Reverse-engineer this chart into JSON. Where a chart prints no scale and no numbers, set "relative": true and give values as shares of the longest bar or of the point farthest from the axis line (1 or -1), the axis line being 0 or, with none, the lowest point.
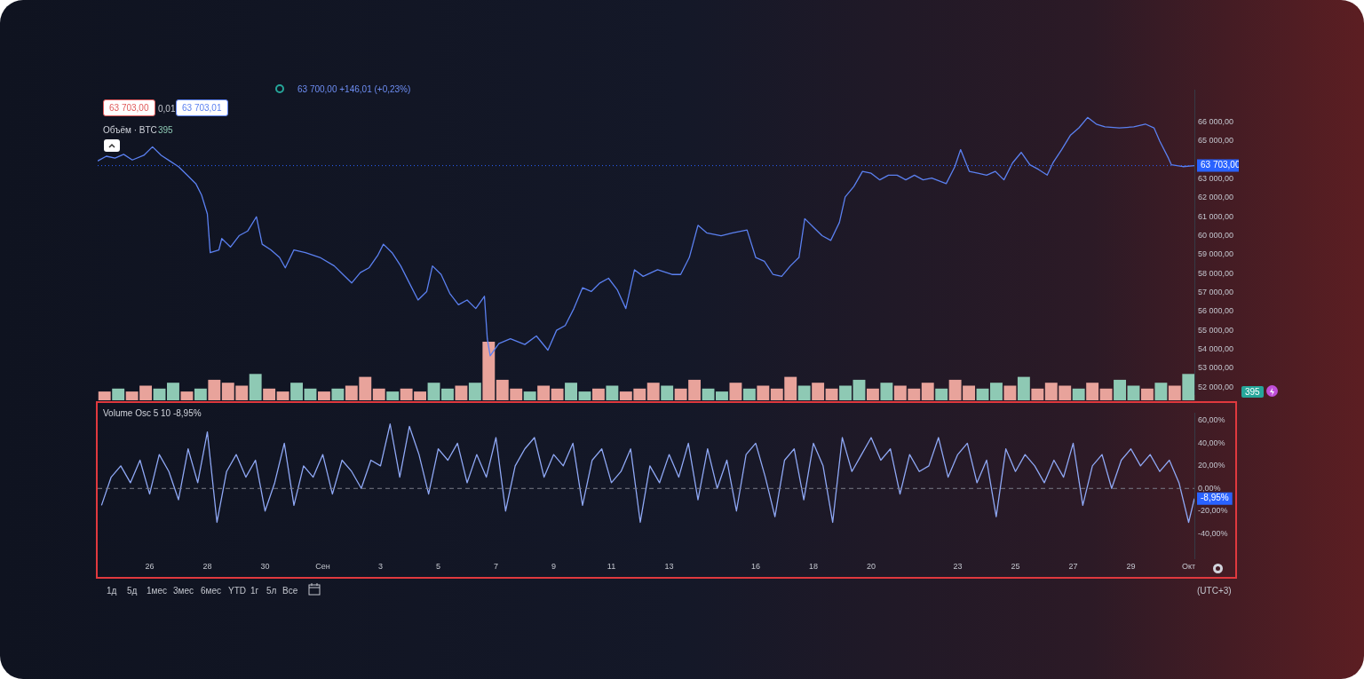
{
  "chart_data": [
    {
      "type": "line",
      "x": [
        "--08-24T04:48",
        "--08-24T12:00",
        "--08-24T19:12",
        "--08-25T02:24",
        "--08-25T09:36",
        "--08-25T19:12",
        "--08-26T02:24",
        "--08-26T09:36",
        "--08-26T16:48",
        "--08-27T00:00",
        "--08-27T07:12",
        "--08-27T14:24",
        "--08-27T19:12",
        "--08-28T00:00",
        "--08-28T02:24",
        "--08-28T09:36",
        "--08-28T12:00",
        "--08-28T19:12",
        "--08-29T02:24",
        "--08-29T09:36",
        "--08-29T16:48",
        "--08-29T21:36",
        "--08-30T04:48",
        "--08-30T12:00",
        "--08-30T16:48",
        "--08-31T00:00",
        "--08-31T09:36",
        "--08-31T21:36",
        "--09-01T09:36",
        "--09-01T16:48",
        "--09-02T00:00",
        "--09-02T07:12",
        "--09-02T14:24",
        "--09-02T21:36",
        "--09-03T02:24",
        "--09-03T09:36",
        "--09-03T16:48",
        "--09-04T00:00",
        "--09-04T07:12",
        "--09-04T14:24",
        "--09-04T19:12",
        "--09-05T02:24",
        "--09-05T09:36",
        "--09-05T16:48",
        "--09-06T00:00",
        "--09-06T07:12",
        "--09-06T14:24",
        "--09-06T16:48",
        "--09-06T19:12",
        "--09-07T02:24",
        "--09-07T12:00",
        "--09-08T00:00",
        "--09-08T09:36",
        "--09-08T19:12",
        "--09-09T02:24",
        "--09-09T09:36",
        "--09-09T16:48",
        "--09-10T00:00",
        "--09-10T07:12",
        "--09-10T14:24",
        "--09-10T21:36",
        "--09-11T04:48",
        "--09-11T12:00",
        "--09-11T19:12",
        "--09-12T02:24",
        "--09-12T14:24",
        "--09-13T02:24",
        "--09-13T09:36",
        "--09-13T16:48",
        "--09-14T00:00",
        "--09-14T07:12",
        "--09-14T19:12",
        "--09-15T04:48",
        "--09-15T16:48",
        "--09-16T00:00",
        "--09-16T07:12",
        "--09-16T14:24",
        "--09-16T21:36",
        "--09-17T04:48",
        "--09-17T12:00",
        "--09-17T16:48",
        "--09-18T00:00",
        "--09-18T07:12",
        "--09-18T14:24",
        "--09-18T21:36",
        "--09-19T02:24",
        "--09-19T09:36",
        "--09-19T16:48",
        "--09-20T00:00",
        "--09-20T07:12",
        "--09-20T14:24",
        "--09-20T21:36",
        "--09-21T04:48",
        "--09-21T12:00",
        "--09-21T19:12",
        "--09-22T02:24",
        "--09-22T14:24",
        "--09-22T21:36",
        "--09-23T02:24",
        "--09-23T09:36",
        "--09-23T16:48",
        "--09-24T00:00",
        "--09-24T07:12",
        "--09-24T14:24",
        "--09-24T21:36",
        "--09-25T04:48",
        "--09-25T12:00",
        "--09-25T19:12",
        "--09-26T02:24",
        "--09-26T07:12",
        "--09-26T14:24",
        "--09-26T21:36",
        "--09-27T04:48",
        "--09-27T12:00",
        "--09-27T19:12",
        "--09-28T02:24",
        "--09-28T14:24",
        "--09-29T02:24",
        "--09-29T12:00",
        "--09-29T19:12",
        "--09-30T00:00",
        "--09-30T07:12",
        "--09-30T09:36",
        "--09-30T19:12",
        "--10-01T04:48"
      ],
      "series": [
        {
          "color": "#5b80f0",
          "values": [
            63950,
            64200,
            64100,
            64300,
            64000,
            64250,
            64700,
            64250,
            63950,
            63650,
            63200,
            62750,
            62150,
            61150,
            59100,
            59250,
            59850,
            59400,
            60000,
            60250,
            61000,
            59550,
            59250,
            58850,
            58300,
            59250,
            59100,
            58850,
            58400,
            57950,
            57500,
            58050,
            58300,
            58950,
            59550,
            59100,
            58400,
            57500,
            56600,
            57050,
            58400,
            57950,
            56950,
            56350,
            56600,
            56150,
            56800,
            54550,
            53650,
            54300,
            54550,
            54250,
            54700,
            53950,
            55000,
            55250,
            56150,
            57250,
            57050,
            57500,
            57750,
            57150,
            56150,
            58200,
            57850,
            58200,
            57950,
            57950,
            58850,
            60550,
            60150,
            60000,
            60150,
            60300,
            58850,
            58650,
            57950,
            57850,
            58400,
            58850,
            60900,
            60450,
            60000,
            59750,
            60700,
            62050,
            62600,
            63400,
            63300,
            62950,
            63200,
            63200,
            62950,
            63200,
            62950,
            63050,
            62750,
            63650,
            64550,
            63400,
            63300,
            63200,
            63400,
            62950,
            63850,
            64400,
            63750,
            63500,
            63200,
            63850,
            64550,
            65300,
            65700,
            66250,
            65900,
            65750,
            65700,
            65750,
            65900,
            65700,
            65000,
            64100,
            63750,
            63650,
            63700
          ]
        }
      ],
      "xlim": [
        "--08-24T04:48",
        "--10-01T04:48"
      ],
      "ylim": [
        51600,
        67700
      ],
      "yticks": [
        {
          "value": 52000,
          "label": "52 000,00"
        },
        {
          "value": 53000,
          "label": "53 000,00"
        },
        {
          "value": 54000,
          "label": "54 000,00"
        },
        {
          "value": 55000,
          "label": "55 000,00"
        },
        {
          "value": 56000,
          "label": "56 000,00"
        },
        {
          "value": 57000,
          "label": "57 000,00"
        },
        {
          "value": 58000,
          "label": "58 000,00"
        },
        {
          "value": 59000,
          "label": "59 000,00"
        },
        {
          "value": 60000,
          "label": "60 000,00"
        },
        {
          "value": 61000,
          "label": "61 000,00"
        },
        {
          "value": 62000,
          "label": "62 000,00"
        },
        {
          "value": 63000,
          "label": "63 000,00"
        },
        {
          "value": 65000,
          "label": "65 000,00"
        },
        {
          "value": 66000,
          "label": "66 000,00"
        }
      ],
      "tick_labels": "y",
      "marker": "none",
      "ref_lines": [
        {
          "axis": "y",
          "value": 63703,
          "label": "63 703,00",
          "color": "#2962ff",
          "line_style": "dotted"
        }
      ],
      "annotations": [
        "63 700,00 +146,01 (+0,23%)",
        "63 703,00",
        "0,01",
        "63 703,01"
      ]
    },
    {
      "type": "bar",
      "relative": true,
      "title": "Объём · BTC",
      "annotations": [
        "395",
        "395"
      ],
      "categories": [
        null,
        null,
        null,
        null,
        null,
        null,
        null,
        null,
        null,
        null,
        null,
        null,
        null,
        null,
        null,
        null,
        null,
        null,
        null,
        null,
        null,
        null,
        null,
        null,
        null,
        null,
        null,
        null,
        null,
        null,
        null,
        null,
        null,
        null,
        null,
        null,
        null,
        null,
        null,
        null,
        null,
        null,
        null,
        null,
        null,
        null,
        null,
        null,
        null,
        null,
        null,
        null,
        null,
        null,
        null,
        null,
        null,
        null,
        null,
        null,
        null,
        null,
        null,
        null,
        null,
        null,
        null,
        null,
        null,
        null,
        null,
        null,
        null,
        null,
        null,
        null,
        null,
        null,
        null,
        null
      ],
      "values": [
        0.15,
        0.2,
        0.15,
        0.25,
        0.2,
        0.3,
        0.15,
        0.2,
        0.35,
        0.3,
        0.25,
        0.45,
        0.2,
        0.15,
        0.3,
        0.2,
        0.15,
        0.2,
        0.25,
        0.4,
        0.2,
        0.15,
        0.2,
        0.15,
        0.3,
        0.2,
        0.25,
        0.3,
        1,
        0.35,
        0.2,
        0.15,
        0.25,
        0.2,
        0.3,
        0.15,
        0.2,
        0.25,
        0.15,
        0.2,
        0.3,
        0.25,
        0.2,
        0.35,
        0.2,
        0.15,
        0.3,
        0.2,
        0.25,
        0.2,
        0.4,
        0.25,
        0.3,
        0.2,
        0.25,
        0.35,
        0.2,
        0.3,
        0.25,
        0.2,
        0.3,
        0.2,
        0.35,
        0.25,
        0.2,
        0.3,
        0.25,
        0.4,
        0.2,
        0.3,
        0.25,
        0.2,
        0.3,
        0.2,
        0.35,
        0.25,
        0.2,
        0.3,
        0.25,
        0.45
      ],
      "colors": [
        "#e8a39b",
        "#8ec9b4",
        "#e8a39b",
        "#e8a39b",
        "#8ec9b4",
        "#8ec9b4",
        "#e8a39b",
        "#8ec9b4",
        "#e8a39b",
        "#e8a39b",
        "#e8a39b",
        "#8ec9b4",
        "#e8a39b",
        "#e8a39b",
        "#8ec9b4",
        "#8ec9b4",
        "#e8a39b",
        "#8ec9b4",
        "#e8a39b",
        "#e8a39b",
        "#e8a39b",
        "#8ec9b4",
        "#e8a39b",
        "#e8a39b",
        "#8ec9b4",
        "#8ec9b4",
        "#e8a39b",
        "#8ec9b4",
        "#e8a39b",
        "#e8a39b",
        "#e8a39b",
        "#8ec9b4",
        "#e8a39b",
        "#e8a39b",
        "#8ec9b4",
        "#8ec9b4",
        "#e8a39b",
        "#8ec9b4",
        "#e8a39b",
        "#e8a39b",
        "#e8a39b",
        "#8ec9b4",
        "#e8a39b",
        "#e8a39b",
        "#8ec9b4",
        "#8ec9b4",
        "#e8a39b",
        "#8ec9b4",
        "#e8a39b",
        "#e8a39b",
        "#e8a39b",
        "#8ec9b4",
        "#e8a39b",
        "#e8a39b",
        "#8ec9b4",
        "#8ec9b4",
        "#e8a39b",
        "#8ec9b4",
        "#e8a39b",
        "#e8a39b",
        "#e8a39b",
        "#8ec9b4",
        "#e8a39b",
        "#e8a39b",
        "#8ec9b4",
        "#8ec9b4",
        "#e8a39b",
        "#8ec9b4",
        "#e8a39b",
        "#e8a39b",
        "#e8a39b",
        "#8ec9b4",
        "#e8a39b",
        "#e8a39b",
        "#8ec9b4",
        "#8ec9b4",
        "#e8a39b",
        "#8ec9b4",
        "#e8a39b",
        "#8ec9b4"
      ]
    },
    {
      "type": "line",
      "title": "Volume Osc 5 10  -8,95%",
      "x": [
        "--08-24T08:00",
        "--08-24T16:00",
        "--08-25T00:00",
        "--08-25T08:00",
        "--08-25T16:00",
        "--08-26T00:00",
        "--08-26T08:00",
        "--08-26T16:00",
        "--08-27T00:00",
        "--08-27T08:00",
        "--08-27T16:00",
        "--08-28T00:00",
        "--08-28T08:00",
        "--08-28T16:00",
        "--08-29T00:00",
        "--08-29T08:00",
        "--08-29T16:00",
        "--08-30T00:00",
        "--08-30T08:00",
        "--08-30T16:00",
        "--08-31T00:00",
        "--08-31T08:00",
        "--08-31T16:00",
        "--09-01T00:00",
        "--09-01T08:00",
        "--09-01T16:00",
        "--09-02T00:00",
        "--09-02T08:00",
        "--09-02T16:00",
        "--09-03T00:00",
        "--09-03T08:00",
        "--09-03T16:00",
        "--09-04T00:00",
        "--09-04T08:00",
        "--09-04T16:00",
        "--09-05T00:00",
        "--09-05T08:00",
        "--09-05T16:00",
        "--09-06T00:00",
        "--09-06T08:00",
        "--09-06T16:00",
        "--09-07T00:00",
        "--09-07T08:00",
        "--09-07T16:00",
        "--09-08T00:00",
        "--09-08T08:00",
        "--09-08T16:00",
        "--09-09T00:00",
        "--09-09T08:00",
        "--09-09T16:00",
        "--09-10T00:00",
        "--09-10T08:00",
        "--09-10T16:00",
        "--09-11T00:00",
        "--09-11T08:00",
        "--09-11T16:00",
        "--09-12T00:00",
        "--09-12T08:00",
        "--09-12T16:00",
        "--09-13T00:00",
        "--09-13T08:00",
        "--09-13T16:00",
        "--09-14T00:00",
        "--09-14T08:00",
        "--09-14T16:00",
        "--09-15T00:00",
        "--09-15T08:00",
        "--09-15T16:00",
        "--09-16T00:00",
        "--09-16T08:00",
        "--09-16T16:00",
        "--09-17T00:00",
        "--09-17T08:00",
        "--09-17T16:00",
        "--09-18T00:00",
        "--09-18T08:00",
        "--09-18T16:00",
        "--09-19T00:00",
        "--09-19T08:00",
        "--09-19T16:00",
        "--09-20T00:00",
        "--09-20T08:00",
        "--09-20T16:00",
        "--09-21T00:00",
        "--09-21T08:00",
        "--09-21T16:00",
        "--09-22T00:00",
        "--09-22T08:00",
        "--09-22T16:00",
        "--09-23T00:00",
        "--09-23T08:00",
        "--09-23T16:00",
        "--09-24T00:00",
        "--09-24T08:00",
        "--09-24T16:00",
        "--09-25T00:00",
        "--09-25T08:00",
        "--09-25T16:00",
        "--09-26T00:00",
        "--09-26T08:00",
        "--09-26T16:00",
        "--09-27T00:00",
        "--09-27T08:00",
        "--09-27T16:00",
        "--09-28T00:00",
        "--09-28T08:00",
        "--09-28T16:00",
        "--09-29T00:00",
        "--09-29T08:00",
        "--09-29T16:00",
        "--09-30T00:00",
        "--09-30T08:00",
        "--09-30T16:00",
        "--10-01T00:00",
        "--10-01T04:48"
      ],
      "series": [
        {
          "color": "#8fa8f5",
          "values": [
            -15,
            10,
            20,
            5,
            25,
            -5,
            30,
            15,
            -10,
            35,
            5,
            50,
            -30,
            15,
            30,
            10,
            25,
            -20,
            5,
            40,
            -15,
            20,
            10,
            30,
            -5,
            25,
            15,
            0,
            25,
            20,
            57,
            10,
            55,
            30,
            -5,
            35,
            25,
            40,
            5,
            30,
            10,
            45,
            -20,
            20,
            35,
            45,
            10,
            30,
            20,
            40,
            -15,
            25,
            35,
            5,
            15,
            35,
            -30,
            20,
            5,
            30,
            10,
            40,
            -10,
            35,
            0,
            25,
            -20,
            30,
            40,
            10,
            -25,
            25,
            35,
            -10,
            40,
            20,
            -30,
            45,
            15,
            30,
            45,
            25,
            35,
            -5,
            30,
            15,
            20,
            45,
            10,
            30,
            40,
            5,
            25,
            -25,
            35,
            15,
            30,
            20,
            5,
            25,
            10,
            40,
            -15,
            20,
            30,
            0,
            25,
            35,
            20,
            30,
            15,
            25,
            5,
            -30,
            -8.95
          ]
        }
      ],
      "xlim": [
        "--08-24T04:48",
        "--10-01T04:48"
      ],
      "ylim": [
        -62,
        66.7
      ],
      "xticks": [
        {
          "value": "--08-26",
          "label": "26"
        },
        {
          "value": "--08-28",
          "label": "28"
        },
        {
          "value": "--08-30",
          "label": "30"
        },
        {
          "value": "--09-01",
          "label": "Сен"
        },
        {
          "value": "--09-03",
          "label": "3"
        },
        {
          "value": "--09-05",
          "label": "5"
        },
        {
          "value": "--09-07",
          "label": "7"
        },
        {
          "value": "--09-09",
          "label": "9"
        },
        {
          "value": "--09-11",
          "label": "11"
        },
        {
          "value": "--09-13",
          "label": "13"
        },
        {
          "value": "--09-16",
          "label": "16"
        },
        {
          "value": "--09-18",
          "label": "18"
        },
        {
          "value": "--09-20",
          "label": "20"
        },
        {
          "value": "--09-23",
          "label": "23"
        },
        {
          "value": "--09-25",
          "label": "25"
        },
        {
          "value": "--09-27",
          "label": "27"
        },
        {
          "value": "--09-29",
          "label": "29"
        },
        {
          "value": "--10-01",
          "label": "Окт"
        }
      ],
      "yticks": [
        {
          "value": -40,
          "label": "-40,00%"
        },
        {
          "value": -20,
          "label": "-20,00%"
        },
        {
          "value": 0,
          "label": "0,00%"
        },
        {
          "value": 20,
          "label": "20,00%"
        },
        {
          "value": 40,
          "label": "40,00%"
        },
        {
          "value": 60,
          "label": "60,00%"
        }
      ],
      "marker": "none",
      "ref_lines": [
        {
          "axis": "y",
          "value": 0,
          "color": "#787b86",
          "line_style": "dashed"
        }
      ],
      "annotations": [
        "1д",
        "5д",
        "1мес",
        "3мес",
        "6мес",
        "YTD",
        "1г",
        "5л",
        "Все",
        "(UTC+3)",
        {
          "text": "-8,95%",
          "x": "--10-01T04:48",
          "y": -8.95
        }
      ]
    }
  ]
}
